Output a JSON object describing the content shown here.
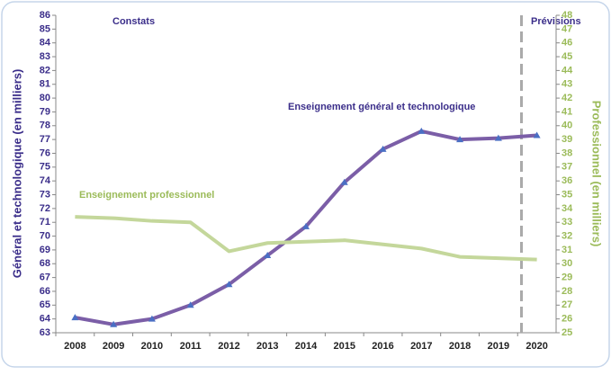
{
  "chart_data": {
    "type": "line",
    "categories": [
      "2008",
      "2009",
      "2010",
      "2011",
      "2012",
      "2013",
      "2014",
      "2015",
      "2016",
      "2017",
      "2018",
      "2019",
      "2020"
    ],
    "series": [
      {
        "name": "Enseignement général et technologique",
        "color": "#7b5ea7",
        "marker_color": "#4a6fc4",
        "axis": "y",
        "values": [
          64.1,
          63.6,
          64.0,
          65.0,
          66.5,
          68.6,
          70.7,
          73.9,
          76.3,
          77.6,
          77.0,
          77.1,
          77.3
        ]
      },
      {
        "name": "Enseignement professionnel",
        "color": "#c4d79b",
        "axis": "y2",
        "values": [
          33.4,
          33.3,
          33.1,
          33.0,
          30.9,
          31.5,
          31.6,
          31.7,
          31.4,
          31.1,
          30.5,
          30.4,
          30.3
        ]
      }
    ],
    "ylabel": "Général et technologique (en milliers)",
    "y2label": "Professionnel (en milliers)",
    "annotations": [
      "Constats",
      "Prévisions"
    ],
    "ylim": [
      63,
      86
    ],
    "yticks": [
      63,
      64,
      65,
      66,
      67,
      68,
      69,
      70,
      71,
      72,
      73,
      74,
      75,
      76,
      77,
      78,
      79,
      80,
      81,
      82,
      83,
      84,
      85,
      86
    ],
    "y2lim": [
      25,
      48
    ],
    "y2ticks": [
      25,
      26,
      27,
      28,
      29,
      30,
      31,
      32,
      33,
      34,
      35,
      36,
      37,
      38,
      39,
      40,
      41,
      42,
      43,
      44,
      45,
      46,
      47,
      48
    ]
  }
}
